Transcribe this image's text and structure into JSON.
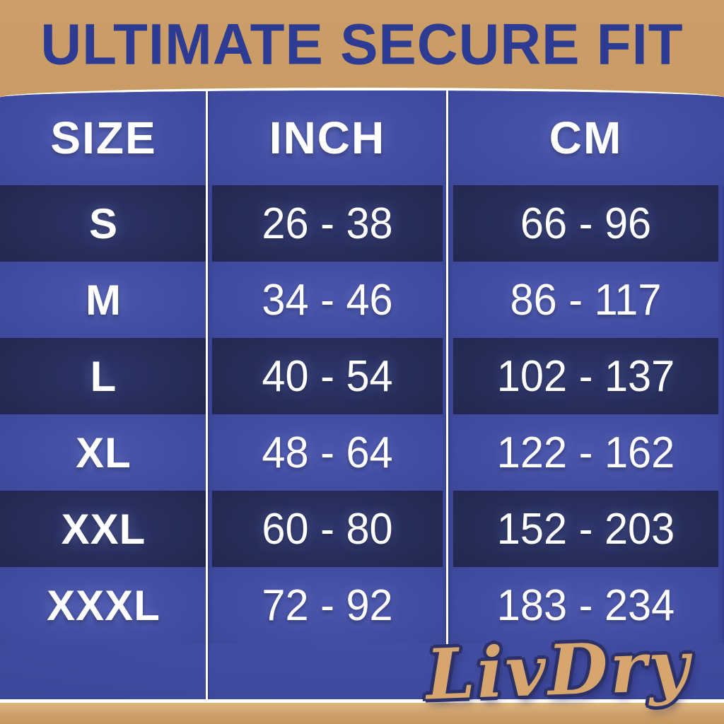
{
  "title": "ULTIMATE SECURE FIT",
  "brand": "LivDry",
  "table": {
    "headers": {
      "size": "SIZE",
      "inch": "INCH",
      "cm": "CM"
    },
    "rows": [
      {
        "size": "S",
        "inch": "26 - 38",
        "cm": "66 - 96"
      },
      {
        "size": "M",
        "inch": "34 - 46",
        "cm": "86 - 117"
      },
      {
        "size": "L",
        "inch": "40 - 54",
        "cm": "102 - 137"
      },
      {
        "size": "XL",
        "inch": "48 - 64",
        "cm": "122 - 162"
      },
      {
        "size": "XXL",
        "inch": "60 - 80",
        "cm": "152 - 203"
      },
      {
        "size": "XXXL",
        "inch": "72 - 92",
        "cm": "183 - 234"
      }
    ]
  },
  "chart_data": {
    "type": "table",
    "title": "ULTIMATE SECURE FIT",
    "columns": [
      "SIZE",
      "INCH",
      "CM"
    ],
    "rows": [
      [
        "S",
        "26 - 38",
        "66 - 96"
      ],
      [
        "M",
        "34 - 46",
        "86 - 117"
      ],
      [
        "L",
        "40 - 54",
        "102 - 137"
      ],
      [
        "XL",
        "48 - 64",
        "122 - 162"
      ],
      [
        "XXL",
        "60 - 80",
        "152 - 203"
      ],
      [
        "XXXL",
        "72 - 92",
        "183 - 234"
      ]
    ],
    "row_shading": [
      "dark",
      "light",
      "dark",
      "light",
      "dark",
      "light"
    ],
    "brand": "LivDry",
    "layout_hints": {
      "header_row": "blue",
      "text_color": "#ffffff",
      "grid": "white vertical dividers only"
    }
  },
  "colors": {
    "background_tan": "#c3965f",
    "title_blue": "#2e3b92",
    "table_blue": "#3d479a",
    "row_dark_navy": "#242b54",
    "cell_text": "#ffffff",
    "divider_white": "#ffffff",
    "logo_fill_tan": "#d6a66e",
    "logo_outline_navy": "#2c3168"
  }
}
